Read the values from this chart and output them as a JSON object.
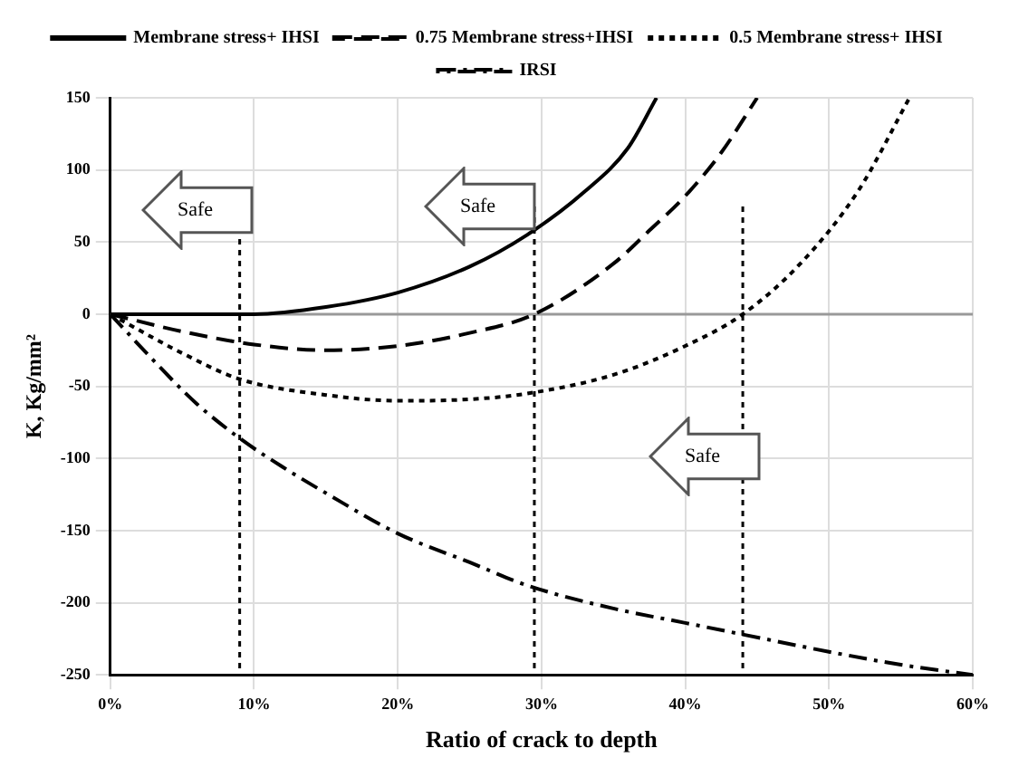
{
  "chart_data": {
    "type": "line",
    "xlabel": "Ratio of crack to depth",
    "ylabel": "K, Kg/mm²",
    "xlim": [
      0,
      60
    ],
    "xticks": [
      {
        "value": 0,
        "label": "0%"
      },
      {
        "value": 10,
        "label": "10%"
      },
      {
        "value": 20,
        "label": "20%"
      },
      {
        "value": 30,
        "label": "30%"
      },
      {
        "value": 40,
        "label": "40%"
      },
      {
        "value": 50,
        "label": "50%"
      },
      {
        "value": 60,
        "label": "60%"
      }
    ],
    "ylim": [
      -250,
      150
    ],
    "yticks": [
      -250,
      -200,
      -150,
      -100,
      -50,
      0,
      50,
      100,
      150
    ],
    "grid": true,
    "legend": "top",
    "marker": "none",
    "series": [
      {
        "name": "Membrane stress+ IHSI",
        "color": "#000000",
        "line_style": "solid",
        "x": [
          0,
          5,
          10,
          15,
          20,
          25,
          29,
          33,
          36,
          38
        ],
        "values": [
          0,
          0,
          0,
          5,
          15,
          33,
          55,
          85,
          115,
          150
        ]
      },
      {
        "name": "0.75 Membrane stress+IHSI",
        "color": "#000000",
        "line_style": "dashed",
        "x": [
          0,
          5,
          10,
          15,
          20,
          25,
          29.5,
          35,
          37.5,
          40,
          42.5,
          45
        ],
        "values": [
          0,
          -12,
          -21,
          -25,
          -22,
          -13,
          0,
          35,
          58,
          82,
          112,
          150
        ]
      },
      {
        "name": "0.5 Membrane stress+ IHSI",
        "color": "#000000",
        "line_style": "dotted",
        "x": [
          0,
          5,
          9,
          15,
          20,
          25,
          29,
          35,
          40,
          44,
          48,
          52,
          55.6
        ],
        "values": [
          0,
          -27,
          -45,
          -56,
          -60,
          -59,
          -55,
          -42,
          -22,
          0,
          35,
          85,
          150
        ]
      },
      {
        "name": "IRSI",
        "color": "#000000",
        "line_style": "dashdot",
        "x": [
          0,
          3,
          6,
          9,
          12,
          15,
          20,
          25,
          29,
          35,
          40,
          44,
          50,
          55,
          60
        ],
        "values": [
          0,
          -32,
          -62,
          -86,
          -106,
          -124,
          -152,
          -172,
          -188,
          -204,
          -214,
          -222,
          -234,
          -243,
          -250
        ]
      }
    ],
    "ref_lines": [
      {
        "axis": "y",
        "value": 0,
        "color": "#999999",
        "line_style": "solid"
      },
      {
        "axis": "x",
        "value": 9,
        "color": "#000000",
        "line_style": "dotted"
      },
      {
        "axis": "x",
        "value": 29.5,
        "color": "#000000",
        "line_style": "dotted"
      },
      {
        "axis": "x",
        "value": 44,
        "color": "#000000",
        "line_style": "dotted"
      }
    ],
    "annotations": [
      "Safe",
      "Safe",
      "Safe"
    ]
  }
}
